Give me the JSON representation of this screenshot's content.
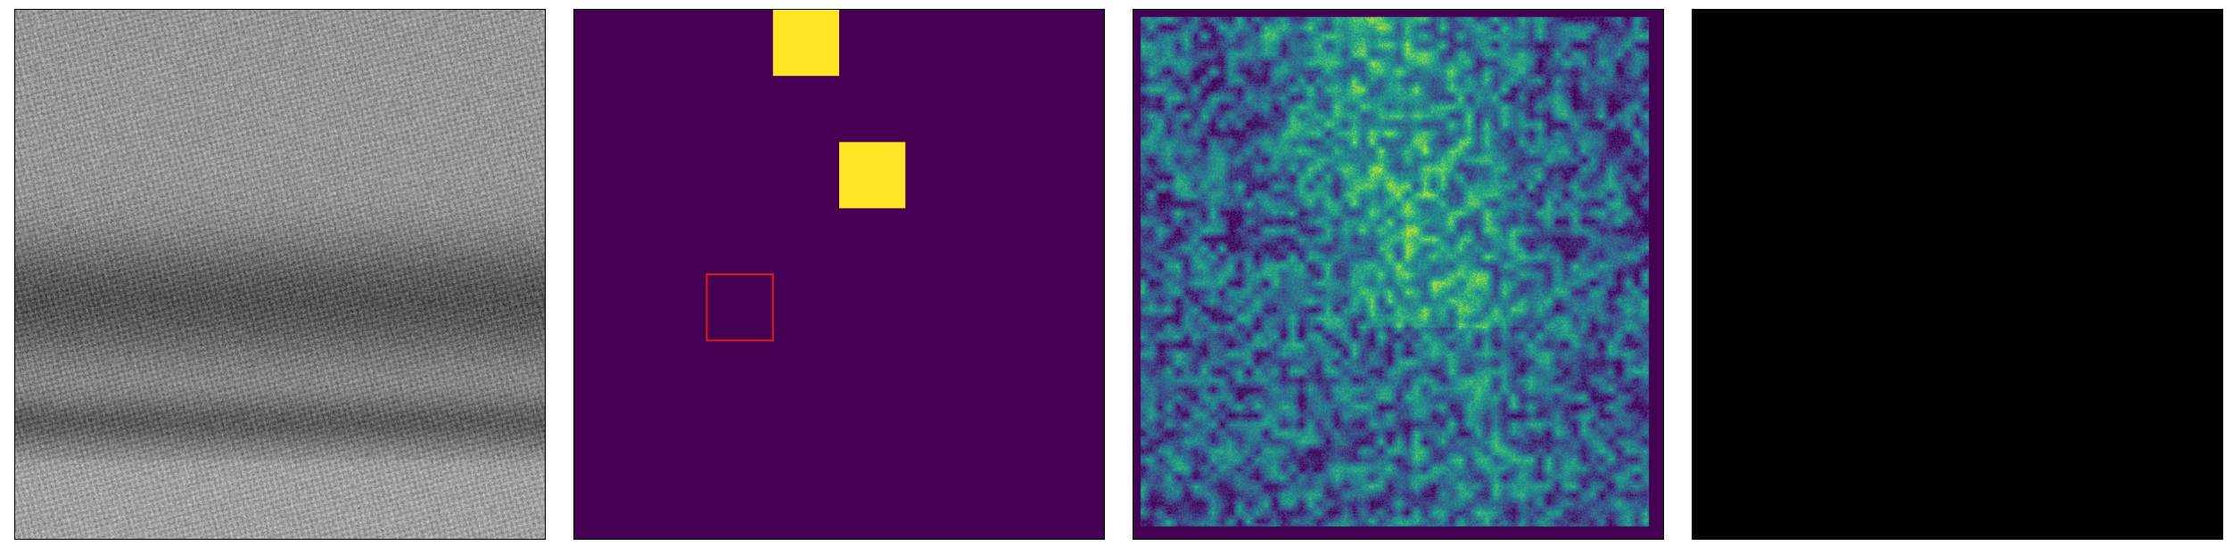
{
  "panels": [
    {
      "kind": "grayscale-micrograph",
      "colormap": "gray"
    },
    {
      "kind": "binary-grid-mask",
      "colormap": "viridis",
      "grid_cells": 8,
      "background_color": "#440154",
      "highlight_color": "#fde725",
      "highlighted_cells": [
        {
          "col": 3,
          "row": 0
        },
        {
          "col": 4,
          "row": 2
        }
      ],
      "outlined_cell": {
        "col": 2,
        "row": 4
      },
      "outline_color": "#e8141b"
    },
    {
      "kind": "heatmap",
      "colormap": "viridis",
      "frame_color": "#440154"
    },
    {
      "kind": "blank",
      "fill_color": "#000000"
    }
  ]
}
